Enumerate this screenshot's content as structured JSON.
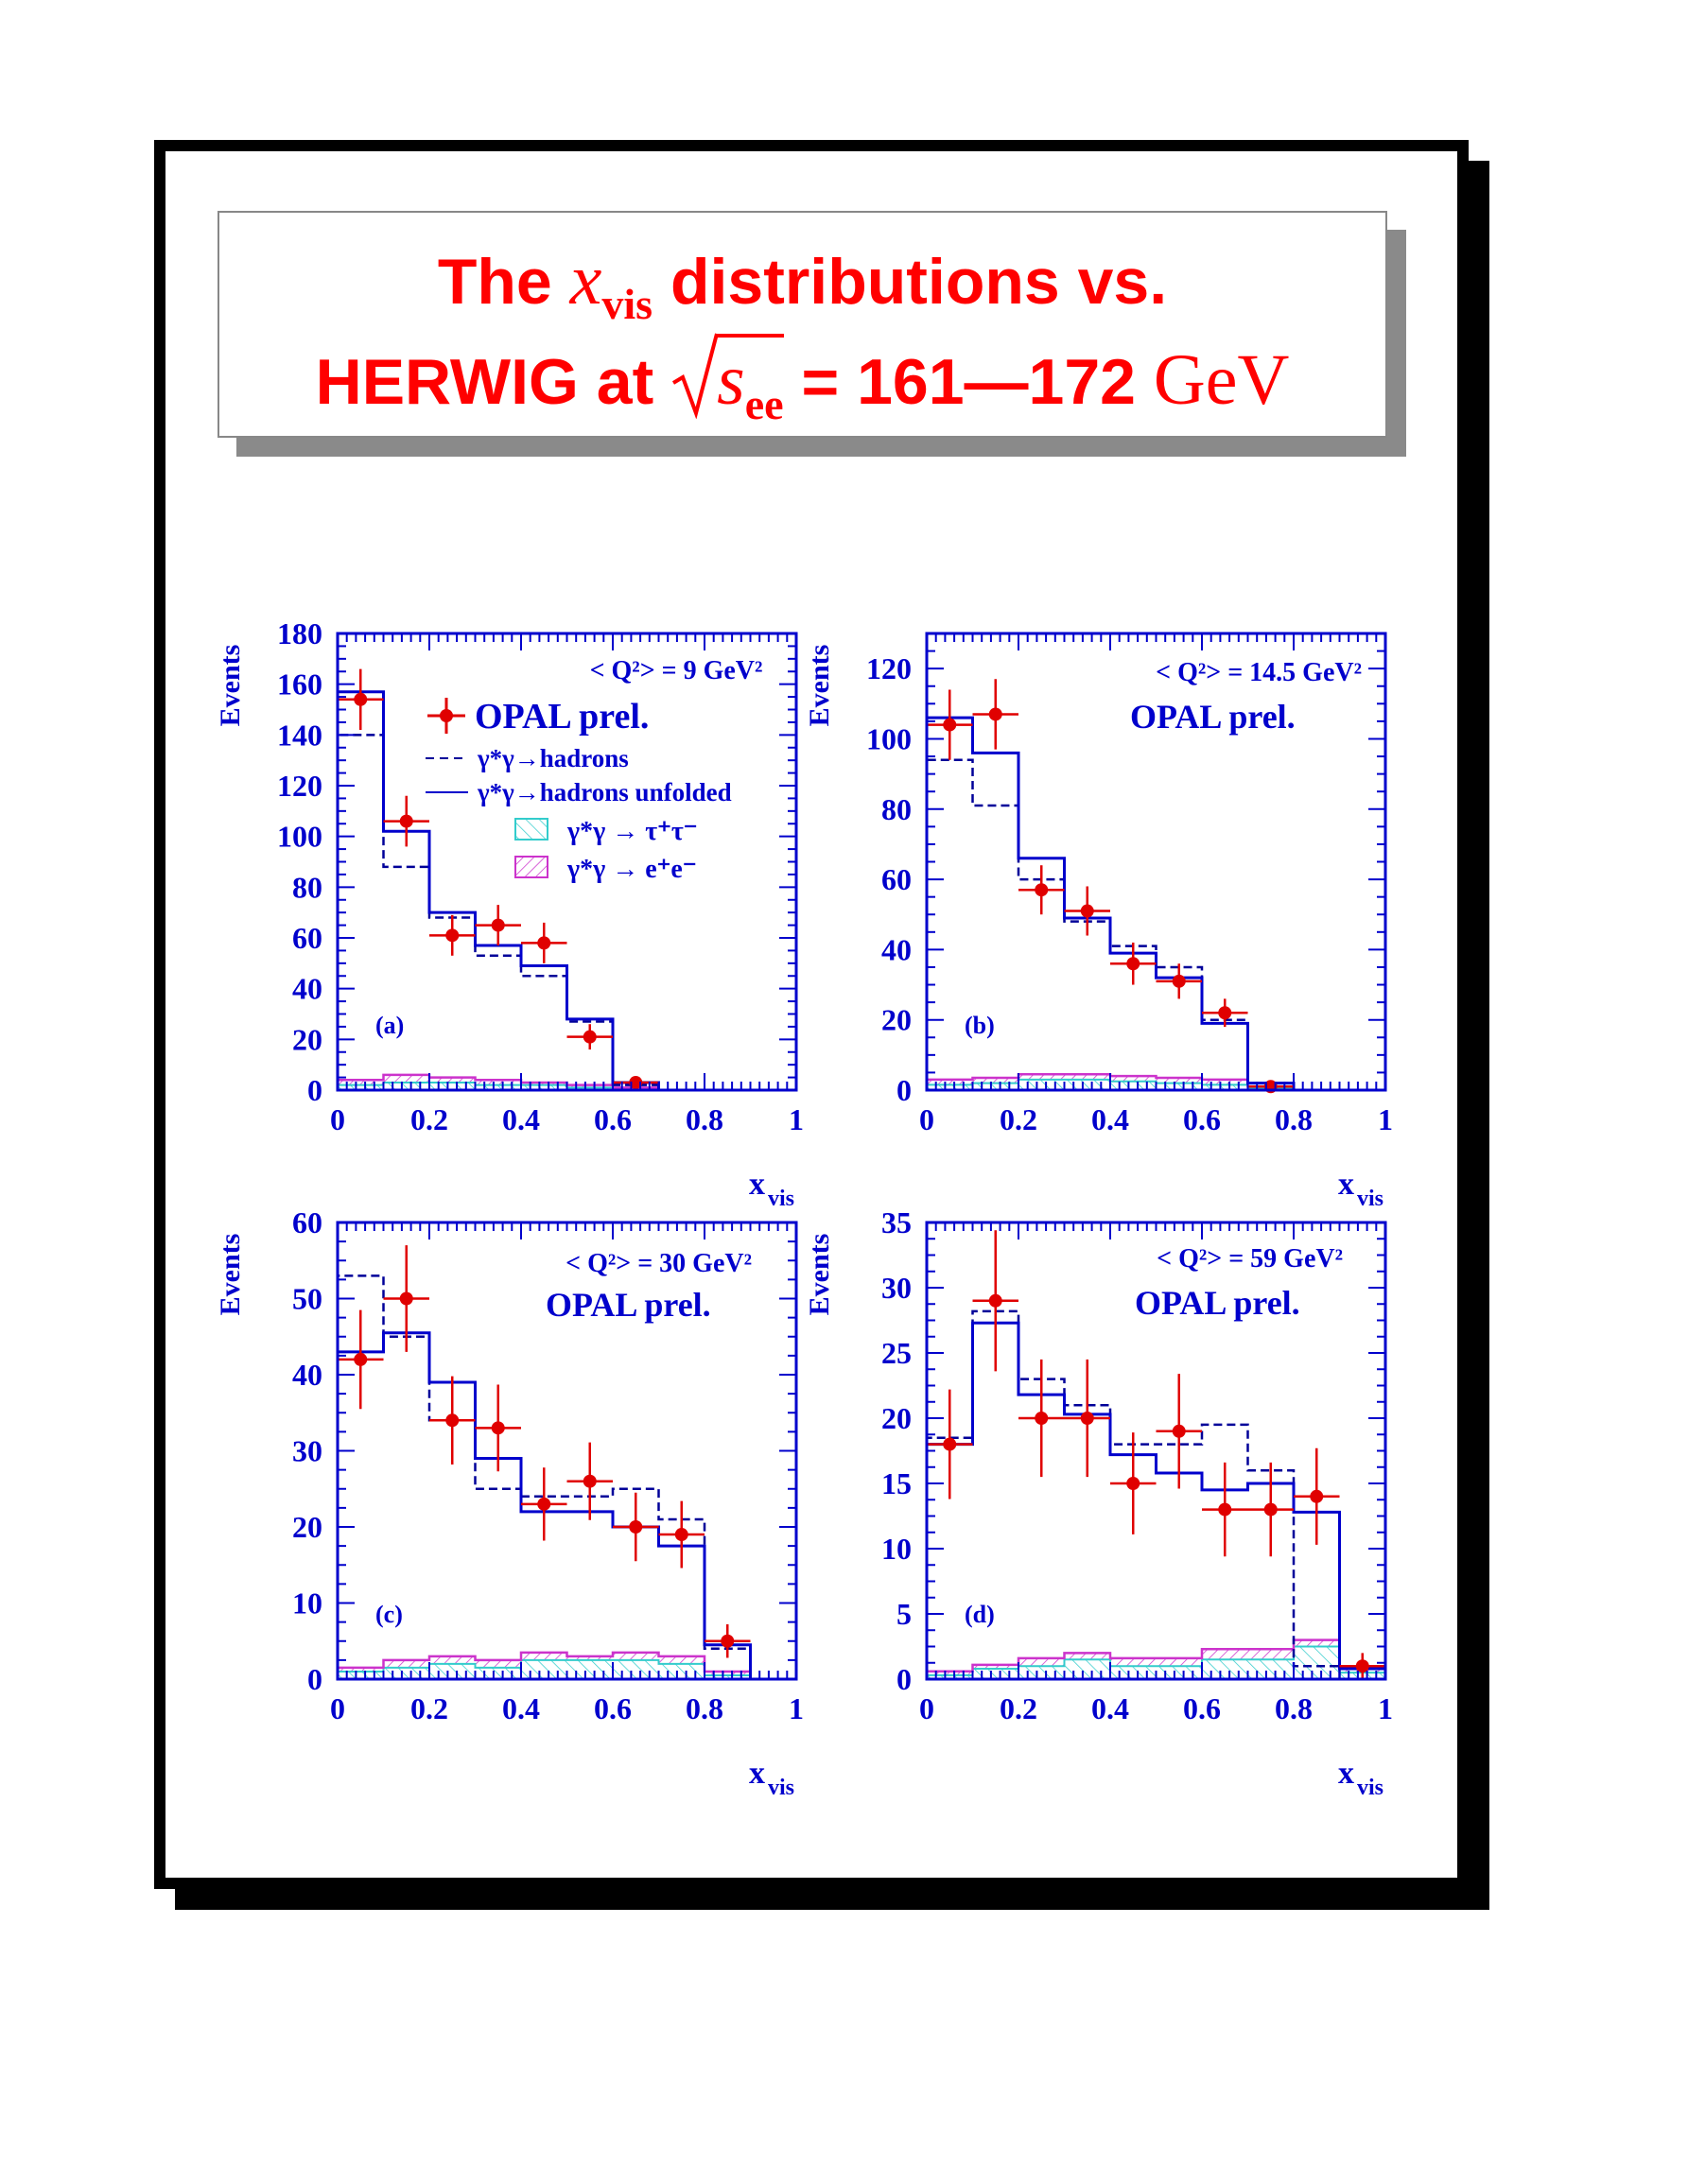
{
  "title": {
    "line1": {
      "pre": "The ",
      "var": "x",
      "sub": "vis",
      "post": " distributions vs."
    },
    "line2": {
      "pre": "HERWIG at ",
      "var": "s",
      "sub": "ee",
      "post": " = 161—172 ",
      "unit": "GeV"
    }
  },
  "colors": {
    "axis": "#0000cc",
    "data": "#e00000",
    "mc_dashed": "#000099",
    "unfolded": "#0000cc",
    "tau": "#33cccc",
    "ee": "#cc33cc",
    "title": "#ff0000"
  },
  "legend": {
    "data": "OPAL prel.",
    "hadrons": "γ*γ→hadrons",
    "unfolded": "γ*γ→hadrons unfolded",
    "tau": "γ*γ → τ⁺τ⁻",
    "ee": "γ*γ → e⁺e⁻"
  },
  "chart_data": [
    {
      "type": "bar",
      "panel": "(a)",
      "q2_label": "< Q²> = 9 GeV²",
      "opal_label": "OPAL prel.",
      "xlabel": "x",
      "xlabel_sub": "vis",
      "ylabel": "Events",
      "xlim": [
        0,
        1
      ],
      "ylim": [
        0,
        180
      ],
      "xticks": [
        "0",
        "0.2",
        "0.4",
        "0.6",
        "0.8",
        "1"
      ],
      "yticks": [
        0,
        20,
        40,
        60,
        80,
        100,
        120,
        140,
        160,
        180
      ],
      "bin_edges": [
        0,
        0.1,
        0.2,
        0.3,
        0.4,
        0.5,
        0.6,
        0.7,
        0.8,
        0.9,
        1.0
      ],
      "series": [
        {
          "name": "OPAL prel.",
          "x": [
            0.05,
            0.15,
            0.25,
            0.35,
            0.45,
            0.55,
            0.65
          ],
          "y": [
            154,
            106,
            61,
            65,
            58,
            21,
            3
          ],
          "err": [
            12,
            10,
            8,
            8,
            8,
            5,
            2
          ]
        },
        {
          "name": "γ*γ→hadrons",
          "values": [
            140,
            88,
            68,
            53,
            45,
            27,
            2,
            0,
            0,
            0
          ]
        },
        {
          "name": "γ*γ→hadrons unfolded",
          "values": [
            157,
            102,
            70,
            57,
            49,
            28,
            3,
            0,
            0,
            0
          ]
        },
        {
          "name": "γ*γ → τ⁺τ⁻",
          "values": [
            2,
            3,
            3,
            2,
            2,
            1,
            0.5,
            0,
            0,
            0
          ]
        },
        {
          "name": "γ*γ → e⁺e⁻",
          "values": [
            4,
            6,
            5,
            4,
            3,
            2,
            1,
            0,
            0,
            0
          ]
        }
      ]
    },
    {
      "type": "bar",
      "panel": "(b)",
      "q2_label": "< Q²> = 14.5 GeV²",
      "opal_label": "OPAL prel.",
      "xlabel": "x",
      "xlabel_sub": "vis",
      "ylabel": "Events",
      "xlim": [
        0,
        1
      ],
      "ylim": [
        0,
        130
      ],
      "xticks": [
        "0",
        "0.2",
        "0.4",
        "0.6",
        "0.8",
        "1"
      ],
      "yticks": [
        0,
        20,
        40,
        60,
        80,
        100,
        120
      ],
      "bin_edges": [
        0,
        0.1,
        0.2,
        0.3,
        0.4,
        0.5,
        0.6,
        0.7,
        0.8,
        0.9,
        1.0
      ],
      "series": [
        {
          "name": "OPAL prel.",
          "x": [
            0.05,
            0.15,
            0.25,
            0.35,
            0.45,
            0.55,
            0.65,
            0.75
          ],
          "y": [
            104,
            107,
            57,
            51,
            36,
            31,
            22,
            1
          ],
          "err": [
            10,
            10,
            7,
            7,
            6,
            5,
            4,
            1
          ]
        },
        {
          "name": "γ*γ→hadrons",
          "values": [
            94,
            81,
            60,
            48,
            41,
            35,
            20,
            2,
            0,
            0
          ]
        },
        {
          "name": "γ*γ→hadrons unfolded",
          "values": [
            106,
            96,
            66,
            49,
            39,
            32,
            19,
            2,
            0,
            0
          ]
        },
        {
          "name": "γ*γ → τ⁺τ⁻",
          "values": [
            1.5,
            2,
            3,
            3,
            2.5,
            2,
            1.5,
            0.5,
            0,
            0
          ]
        },
        {
          "name": "γ*γ → e⁺e⁻",
          "values": [
            3,
            3.5,
            4.5,
            4.5,
            4,
            3.5,
            3,
            1,
            0,
            0
          ]
        }
      ]
    },
    {
      "type": "bar",
      "panel": "(c)",
      "q2_label": "< Q²> = 30 GeV²",
      "opal_label": "OPAL prel.",
      "xlabel": "x",
      "xlabel_sub": "vis",
      "ylabel": "Events",
      "xlim": [
        0,
        1
      ],
      "ylim": [
        0,
        60
      ],
      "xticks": [
        "0",
        "0.2",
        "0.4",
        "0.6",
        "0.8",
        "1"
      ],
      "yticks": [
        0,
        10,
        20,
        30,
        40,
        50,
        60
      ],
      "bin_edges": [
        0,
        0.1,
        0.2,
        0.3,
        0.4,
        0.5,
        0.6,
        0.7,
        0.8,
        0.9,
        1.0
      ],
      "series": [
        {
          "name": "OPAL prel.",
          "x": [
            0.05,
            0.15,
            0.25,
            0.35,
            0.45,
            0.55,
            0.65,
            0.75,
            0.85
          ],
          "y": [
            42,
            50,
            34,
            33,
            23,
            26,
            20,
            19,
            5
          ],
          "err": [
            6.5,
            7,
            5.8,
            5.7,
            4.8,
            5.1,
            4.5,
            4.4,
            2.2
          ]
        },
        {
          "name": "γ*γ→hadrons",
          "values": [
            53,
            45,
            34,
            25,
            24,
            24,
            25,
            21,
            4,
            0
          ]
        },
        {
          "name": "γ*γ→hadrons unfolded",
          "values": [
            43,
            45.5,
            39,
            29,
            22,
            22,
            20,
            17.5,
            4.5,
            0
          ]
        },
        {
          "name": "γ*γ → τ⁺τ⁻",
          "values": [
            1,
            1.5,
            2,
            1.5,
            2.5,
            2.5,
            2.5,
            2,
            0.5,
            0
          ]
        },
        {
          "name": "γ*γ → e⁺e⁻",
          "values": [
            1.5,
            2.5,
            3,
            2.5,
            3.5,
            3,
            3.5,
            3,
            1,
            0
          ]
        }
      ]
    },
    {
      "type": "bar",
      "panel": "(d)",
      "q2_label": "< Q²> = 59 GeV²",
      "opal_label": "OPAL prel.",
      "xlabel": "x",
      "xlabel_sub": "vis",
      "ylabel": "Events",
      "xlim": [
        0,
        1
      ],
      "ylim": [
        0,
        35
      ],
      "xticks": [
        "0",
        "0.2",
        "0.4",
        "0.6",
        "0.8",
        "1"
      ],
      "yticks": [
        0,
        5,
        10,
        15,
        20,
        25,
        30,
        35
      ],
      "bin_edges": [
        0,
        0.1,
        0.2,
        0.3,
        0.4,
        0.5,
        0.6,
        0.7,
        0.8,
        0.9,
        1.0
      ],
      "series": [
        {
          "name": "OPAL prel.",
          "x": [
            0.05,
            0.15,
            0.25,
            0.35,
            0.45,
            0.55,
            0.65,
            0.75,
            0.85,
            0.95
          ],
          "y": [
            18,
            29,
            20,
            20,
            15,
            19,
            13,
            13,
            14,
            1
          ],
          "err": [
            4.2,
            5.4,
            4.5,
            4.5,
            3.9,
            4.4,
            3.6,
            3.6,
            3.7,
            1
          ]
        },
        {
          "name": "γ*γ→hadrons",
          "values": [
            18.5,
            28.2,
            23,
            21,
            18,
            18,
            19.5,
            16,
            1,
            0
          ]
        },
        {
          "name": "γ*γ→hadrons unfolded",
          "values": [
            18,
            27.3,
            21.8,
            20.3,
            17.2,
            15.8,
            14.5,
            15,
            12.8,
            0.8
          ]
        },
        {
          "name": "γ*γ → τ⁺τ⁻",
          "values": [
            0.3,
            0.8,
            1,
            1.5,
            1,
            1,
            1.5,
            1.5,
            2.5,
            0.5
          ]
        },
        {
          "name": "γ*γ → e⁺e⁻",
          "values": [
            0.6,
            1.1,
            1.6,
            2,
            1.6,
            1.6,
            2.3,
            2.3,
            3,
            1
          ]
        }
      ]
    }
  ]
}
